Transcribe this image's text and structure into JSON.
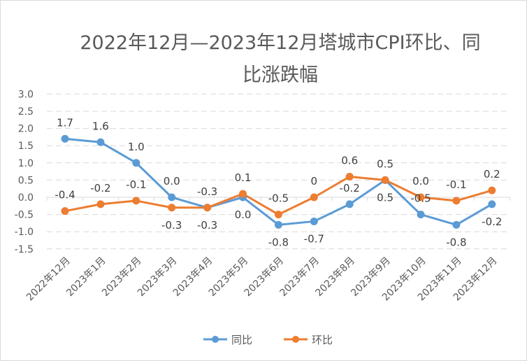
{
  "chart_data": {
    "type": "line",
    "title": "2022年12月—2023年12月塔城市CPI环比、同比涨跌幅",
    "categories": [
      "2022年12月",
      "2023年1月",
      "2023年2月",
      "2023年3月",
      "2023年4月",
      "2023年5月",
      "2023年6月",
      "2023年7月",
      "2023年8月",
      "2023年9月",
      "2023年10月",
      "2023年11月",
      "2023年12月"
    ],
    "ylim": [
      -1.5,
      3.0
    ],
    "yticks": [
      "3.0",
      "2.5",
      "2.0",
      "1.5",
      "1.0",
      "0.5",
      "0.0",
      "-0.5",
      "-1.0",
      "-1.5"
    ],
    "ytick_values": [
      3,
      2.5,
      2,
      1.5,
      1,
      0.5,
      0,
      -0.5,
      -1,
      -1.5
    ],
    "grid": true,
    "legend": "bottom",
    "series": [
      {
        "name": "同比",
        "color": "#5b9bd5",
        "values": [
          1.7,
          1.6,
          1.0,
          0.0,
          -0.3,
          0.0,
          -0.8,
          -0.7,
          -0.2,
          0.5,
          -0.5,
          -0.8,
          -0.2
        ],
        "labels": [
          "1.7",
          "1.6",
          "1.0",
          "0.0",
          "-0.3",
          "0.0",
          "-0.8",
          "-0.7",
          "-0.2",
          "0.5",
          "-0.5",
          "-0.8",
          "-0.2"
        ],
        "label_pos": [
          "above",
          "above",
          "above",
          "above",
          "above",
          "below",
          "below",
          "below",
          "above",
          "above",
          "above",
          "below",
          "below"
        ]
      },
      {
        "name": "环比",
        "color": "#ed7d31",
        "values": [
          -0.4,
          -0.2,
          -0.1,
          -0.3,
          -0.3,
          0.1,
          -0.5,
          0,
          0.6,
          0.5,
          0.0,
          -0.1,
          0.2
        ],
        "labels": [
          "-0.4",
          "-0.2",
          "-0.1",
          "-0.3",
          "-0.3",
          "0.1",
          "-0.5",
          "0",
          "0.6",
          "0.5",
          "0.0",
          "-0.1",
          "0.2"
        ],
        "label_pos": [
          "above",
          "above",
          "above",
          "below",
          "above",
          "above",
          "above",
          "above",
          "above",
          "above",
          "above",
          "above",
          "above"
        ]
      }
    ]
  }
}
